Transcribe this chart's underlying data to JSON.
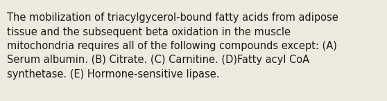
{
  "text_lines": [
    "The mobilization of triacylgycerol-bound fatty acids from adipose",
    "tissue and the subsequent beta oxidation in the muscle",
    "mitochondria requires all of the following compounds except: (A)",
    "Serum albumin. (B) Citrate. (C) Carnitine. (D)Fatty acyl CoA",
    "synthetase. (E) Hormone-sensitive lipase."
  ],
  "background_color": "#edeadf",
  "text_color": "#1a1a1a",
  "font_size": 10.5,
  "font_family": "DejaVu Sans"
}
